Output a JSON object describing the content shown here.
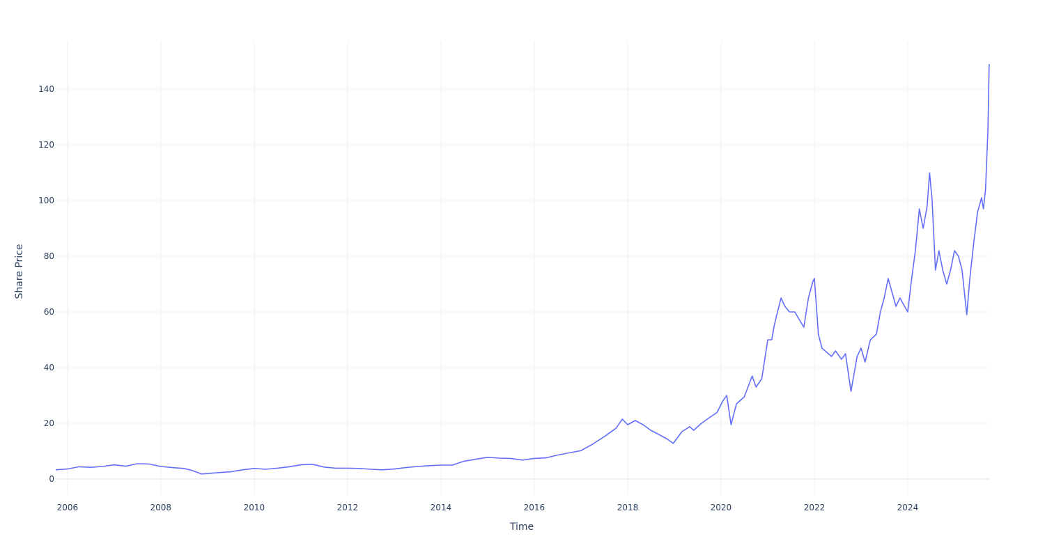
{
  "chart_data": {
    "type": "line",
    "title": "",
    "xlabel": "Time",
    "ylabel": "Share Price",
    "xlim": [
      "2005-10-01",
      "2025-09-30"
    ],
    "ylim": [
      -5.5,
      157
    ],
    "x_ticks": [
      "2006",
      "2008",
      "2010",
      "2012",
      "2014",
      "2016",
      "2018",
      "2020",
      "2022",
      "2024"
    ],
    "y_ticks": [
      "0",
      "20",
      "40",
      "60",
      "80",
      "100",
      "120",
      "140"
    ],
    "grid": true,
    "legend": "none",
    "series": [
      {
        "color": "#636efa",
        "x": [
          "2005-10-01",
          "2006-01-01",
          "2006-04-01",
          "2006-07-01",
          "2006-10-01",
          "2007-01-01",
          "2007-04-01",
          "2007-07-01",
          "2007-10-01",
          "2008-01-01",
          "2008-04-01",
          "2008-07-01",
          "2008-09-01",
          "2008-11-15",
          "2009-03-01",
          "2009-07-01",
          "2009-10-01",
          "2010-01-01",
          "2010-04-01",
          "2010-07-01",
          "2010-10-01",
          "2011-01-01",
          "2011-04-01",
          "2011-07-01",
          "2011-10-01",
          "2012-01-01",
          "2012-04-01",
          "2012-07-01",
          "2012-10-01",
          "2013-01-01",
          "2013-04-01",
          "2013-07-01",
          "2013-10-01",
          "2014-01-01",
          "2014-04-01",
          "2014-07-01",
          "2014-10-01",
          "2015-01-01",
          "2015-04-01",
          "2015-07-01",
          "2015-10-01",
          "2016-01-01",
          "2016-04-01",
          "2016-07-01",
          "2016-10-01",
          "2017-01-01",
          "2017-04-01",
          "2017-07-01",
          "2017-10-01",
          "2017-11-20",
          "2018-01-01",
          "2018-03-01",
          "2018-05-01",
          "2018-07-01",
          "2018-09-01",
          "2018-11-01",
          "2018-12-24",
          "2019-03-01",
          "2019-05-01",
          "2019-06-01",
          "2019-08-01",
          "2019-10-01",
          "2019-12-01",
          "2020-01-15",
          "2020-02-15",
          "2020-03-20",
          "2020-05-01",
          "2020-07-01",
          "2020-09-01",
          "2020-10-01",
          "2020-11-15",
          "2021-01-01",
          "2021-02-01",
          "2021-02-20",
          "2021-03-10",
          "2021-04-15",
          "2021-05-15",
          "2021-06-20",
          "2021-08-01",
          "2021-09-01",
          "2021-10-10",
          "2021-11-15",
          "2021-12-20",
          "2022-01-01",
          "2022-02-01",
          "2022-03-01",
          "2022-05-15",
          "2022-06-15",
          "2022-08-01",
          "2022-09-01",
          "2022-10-14",
          "2022-12-01",
          "2023-01-01",
          "2023-02-01",
          "2023-03-15",
          "2023-05-01",
          "2023-06-01",
          "2023-07-01",
          "2023-08-01",
          "2023-10-01",
          "2023-11-01",
          "2024-01-01",
          "2024-02-01",
          "2024-03-01",
          "2024-04-01",
          "2024-05-01",
          "2024-06-01",
          "2024-06-20",
          "2024-07-10",
          "2024-08-05",
          "2024-09-01",
          "2024-10-01",
          "2024-11-01",
          "2024-12-01",
          "2025-01-01",
          "2025-02-01",
          "2025-03-01",
          "2025-04-07",
          "2025-05-01",
          "2025-06-01",
          "2025-07-01",
          "2025-08-01",
          "2025-08-15",
          "2025-09-01",
          "2025-09-20",
          "2025-09-29"
        ],
        "y": [
          3.3,
          3.6,
          4.4,
          4.2,
          4.5,
          5.1,
          4.6,
          5.5,
          5.4,
          4.5,
          4.1,
          3.8,
          3.1,
          1.8,
          2.2,
          2.6,
          3.3,
          3.8,
          3.5,
          3.9,
          4.4,
          5.1,
          5.3,
          4.3,
          3.9,
          3.9,
          3.8,
          3.5,
          3.3,
          3.6,
          4.1,
          4.5,
          4.8,
          5.0,
          5.0,
          6.4,
          7.1,
          7.8,
          7.5,
          7.4,
          6.8,
          7.4,
          7.6,
          8.6,
          9.4,
          10.2,
          12.5,
          15.2,
          18.2,
          21.5,
          19.5,
          21.0,
          19.5,
          17.5,
          16.0,
          14.5,
          12.8,
          17.0,
          18.8,
          17.5,
          20.0,
          22.0,
          23.9,
          28.0,
          30.0,
          19.5,
          27.0,
          29.5,
          37.0,
          33.0,
          36.0,
          50.0,
          50.0,
          55.0,
          58.5,
          65.0,
          62.0,
          60.0,
          60.0,
          57.5,
          54.5,
          65.0,
          71.0,
          72.0,
          52.0,
          47.0,
          44.0,
          46.0,
          43.0,
          45.0,
          31.5,
          44.0,
          47.0,
          42.0,
          50.0,
          52.0,
          60.0,
          65.0,
          72.0,
          62.0,
          65.0,
          60.0,
          72.0,
          82.0,
          97.0,
          90.0,
          98.0,
          110.0,
          100.0,
          75.0,
          82.0,
          75.0,
          70.0,
          75.0,
          82.0,
          80.0,
          75.0,
          59.0,
          72.0,
          85.0,
          96.0,
          101.0,
          97.0,
          104.0,
          126.0,
          149.0
        ]
      }
    ]
  }
}
